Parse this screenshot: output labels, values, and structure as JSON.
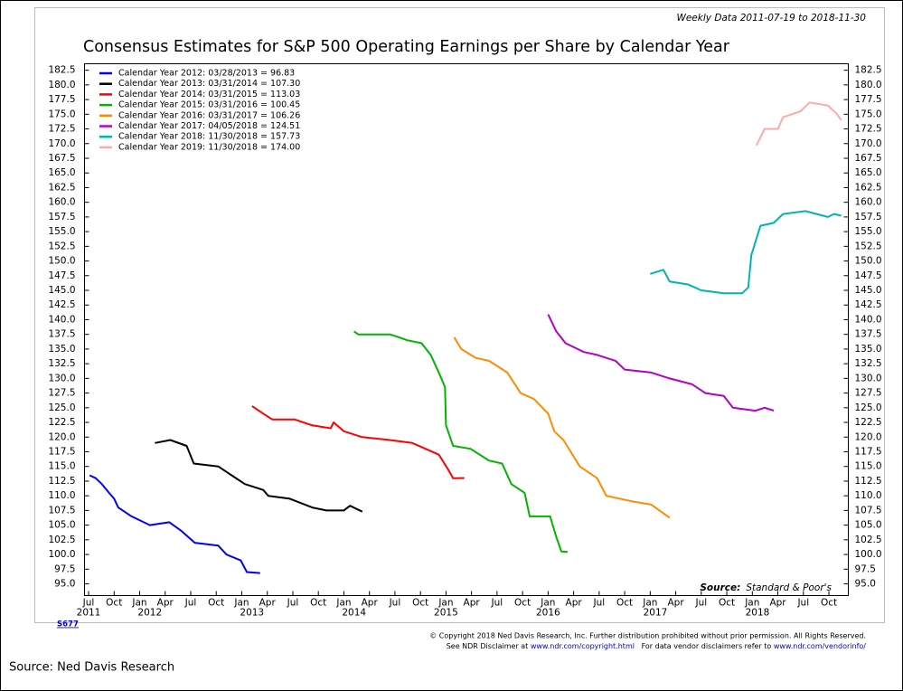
{
  "chart_data": {
    "type": "line",
    "title": "Consensus Estimates for S&P 500 Operating Earnings per Share by Calendar Year",
    "subtitle": "Weekly Data 2011-07-19 to 2018-11-30",
    "source_label": "Source:",
    "source_text": "Standard & Poor's",
    "chart_id": "S677",
    "copyright_line1": "© Copyright 2018 Ned Davis Research, Inc. Further distribution prohibited without prior permission. All Rights Reserved.",
    "copyright_line2_a": "See NDR Disclaimer at ",
    "copyright_link1": "www.ndr.com/copyright.html",
    "copyright_line2_b": "   For data vendor disclaimers refer to ",
    "copyright_link2": "www.ndr.com/vendorinfo/",
    "footer": "Source: Ned Davis Research",
    "xlim": [
      2011.46,
      2018.94
    ],
    "ylim": [
      93.0,
      183.6
    ],
    "grid": false,
    "legend": "upper-left",
    "yticks": [
      {
        "value": 95,
        "label": "95.0"
      },
      {
        "value": 97.5,
        "label": "97.5"
      },
      {
        "value": 100,
        "label": "100.0"
      },
      {
        "value": 102.5,
        "label": "102.5"
      },
      {
        "value": 105,
        "label": "105.0"
      },
      {
        "value": 107.5,
        "label": "107.5"
      },
      {
        "value": 110,
        "label": "110.0"
      },
      {
        "value": 112.5,
        "label": "112.5"
      },
      {
        "value": 115,
        "label": "115.0"
      },
      {
        "value": 117.5,
        "label": "117.5"
      },
      {
        "value": 120,
        "label": "120.0"
      },
      {
        "value": 122.5,
        "label": "122.5"
      },
      {
        "value": 125,
        "label": "125.0"
      },
      {
        "value": 127.5,
        "label": "127.5"
      },
      {
        "value": 130,
        "label": "130.0"
      },
      {
        "value": 132.5,
        "label": "132.5"
      },
      {
        "value": 135,
        "label": "135.0"
      },
      {
        "value": 137.5,
        "label": "137.5"
      },
      {
        "value": 140,
        "label": "140.0"
      },
      {
        "value": 142.5,
        "label": "142.5"
      },
      {
        "value": 145,
        "label": "145.0"
      },
      {
        "value": 147.5,
        "label": "147.5"
      },
      {
        "value": 150,
        "label": "150.0"
      },
      {
        "value": 152.5,
        "label": "152.5"
      },
      {
        "value": 155,
        "label": "155.0"
      },
      {
        "value": 157.5,
        "label": "157.5"
      },
      {
        "value": 160,
        "label": "160.0"
      },
      {
        "value": 162.5,
        "label": "162.5"
      },
      {
        "value": 165,
        "label": "165.0"
      },
      {
        "value": 167.5,
        "label": "167.5"
      },
      {
        "value": 170,
        "label": "170.0"
      },
      {
        "value": 172.5,
        "label": "172.5"
      },
      {
        "value": 175,
        "label": "175.0"
      },
      {
        "value": 177.5,
        "label": "177.5"
      },
      {
        "value": 180,
        "label": "180.0"
      },
      {
        "value": 182.5,
        "label": "182.5"
      }
    ],
    "xticks": [
      {
        "value": 2011.5,
        "label": "Jul"
      },
      {
        "value": 2011.75,
        "label": "Oct"
      },
      {
        "value": 2012.0,
        "label": "Jan"
      },
      {
        "value": 2012.25,
        "label": "Apr"
      },
      {
        "value": 2012.5,
        "label": "Jul"
      },
      {
        "value": 2012.75,
        "label": "Oct"
      },
      {
        "value": 2013.0,
        "label": "Jan"
      },
      {
        "value": 2013.25,
        "label": "Apr"
      },
      {
        "value": 2013.5,
        "label": "Jul"
      },
      {
        "value": 2013.75,
        "label": "Oct"
      },
      {
        "value": 2014.0,
        "label": "Jan"
      },
      {
        "value": 2014.25,
        "label": "Apr"
      },
      {
        "value": 2014.5,
        "label": "Jul"
      },
      {
        "value": 2014.75,
        "label": "Oct"
      },
      {
        "value": 2015.0,
        "label": "Jan"
      },
      {
        "value": 2015.25,
        "label": "Apr"
      },
      {
        "value": 2015.5,
        "label": "Jul"
      },
      {
        "value": 2015.75,
        "label": "Oct"
      },
      {
        "value": 2016.0,
        "label": "Jan"
      },
      {
        "value": 2016.25,
        "label": "Apr"
      },
      {
        "value": 2016.5,
        "label": "Jul"
      },
      {
        "value": 2016.75,
        "label": "Oct"
      },
      {
        "value": 2017.0,
        "label": "Jan"
      },
      {
        "value": 2017.25,
        "label": "Apr"
      },
      {
        "value": 2017.5,
        "label": "Jul"
      },
      {
        "value": 2017.75,
        "label": "Oct"
      },
      {
        "value": 2018.0,
        "label": "Jan"
      },
      {
        "value": 2018.25,
        "label": "Apr"
      },
      {
        "value": 2018.5,
        "label": "Jul"
      },
      {
        "value": 2018.75,
        "label": "Oct"
      }
    ],
    "year_labels": [
      {
        "value": 2011.5,
        "label": "2011"
      },
      {
        "value": 2012.1,
        "label": "2012"
      },
      {
        "value": 2013.1,
        "label": "2013"
      },
      {
        "value": 2014.1,
        "label": "2014"
      },
      {
        "value": 2015.0,
        "label": "2015"
      },
      {
        "value": 2016.0,
        "label": "2016"
      },
      {
        "value": 2017.05,
        "label": "2017"
      },
      {
        "value": 2018.05,
        "label": "2018"
      }
    ],
    "series": [
      {
        "name": "Calendar Year 2012: 03/28/2013 = 96.83",
        "color": "#0000ff",
        "x": [
          2011.51,
          2011.57,
          2011.63,
          2011.7,
          2011.75,
          2011.79,
          2011.92,
          2012.1,
          2012.29,
          2012.41,
          2012.54,
          2012.77,
          2012.85,
          2012.99,
          2013.05,
          2013.18
        ],
        "values": [
          113.5,
          113,
          112,
          110.5,
          109.5,
          108,
          106.5,
          105,
          105.5,
          104,
          102,
          101.5,
          100,
          99,
          97,
          96.83
        ]
      },
      {
        "name": "Calendar Year 2013: 03/31/2014 = 107.30",
        "color": "#000000",
        "x": [
          2012.15,
          2012.3,
          2012.46,
          2012.53,
          2012.77,
          2012.9,
          2013.03,
          2013.21,
          2013.26,
          2013.47,
          2013.69,
          2013.83,
          2014.0,
          2014.06,
          2014.18
        ],
        "values": [
          119.0,
          119.5,
          118.5,
          115.5,
          115,
          113.5,
          112,
          111,
          110,
          109.5,
          108,
          107.5,
          107.5,
          108.3,
          107.3
        ]
      },
      {
        "name": "Calendar Year 2014: 03/31/2015 = 113.03",
        "color": "#ff0000",
        "x": [
          2013.1,
          2013.21,
          2013.3,
          2013.52,
          2013.69,
          2013.87,
          2013.9,
          2014.0,
          2014.18,
          2014.45,
          2014.67,
          2014.8,
          2014.93,
          2015.02,
          2015.07,
          2015.18
        ],
        "values": [
          125.3,
          124,
          123,
          123,
          122,
          121.5,
          122.5,
          121,
          120,
          119.5,
          119,
          118,
          117,
          114.5,
          113,
          113.03
        ]
      },
      {
        "name": "Calendar Year 2015: 03/31/2016 = 100.45",
        "color": "#00b400",
        "x": [
          2014.1,
          2014.14,
          2014.45,
          2014.54,
          2014.62,
          2014.76,
          2014.85,
          2014.93,
          2014.99,
          2015.0,
          2015.07,
          2015.24,
          2015.42,
          2015.55,
          2015.64,
          2015.77,
          2015.82,
          2016.02,
          2016.08,
          2016.13,
          2016.19
        ],
        "values": [
          138.0,
          137.5,
          137.5,
          137,
          136.5,
          136,
          134,
          131,
          128.5,
          122,
          118.5,
          118,
          116,
          115.5,
          112,
          110.5,
          106.5,
          106.5,
          103,
          100.5,
          100.45
        ]
      },
      {
        "name": "Calendar Year 2016: 03/31/2017 = 106.26",
        "color": "#ff8c00",
        "x": [
          2015.08,
          2015.15,
          2015.29,
          2015.42,
          2015.6,
          2015.73,
          2015.86,
          2016.0,
          2016.06,
          2016.15,
          2016.31,
          2016.48,
          2016.57,
          2016.84,
          2017.01,
          2017.19
        ],
        "values": [
          137.0,
          135,
          133.5,
          133,
          131,
          127.5,
          126.5,
          124,
          121,
          119.5,
          115,
          113,
          110,
          109,
          108.5,
          106.26
        ]
      },
      {
        "name": "Calendar Year 2017: 04/05/2018 = 124.51",
        "color": "#b400c8",
        "x": [
          2016.0,
          2016.08,
          2016.17,
          2016.35,
          2016.48,
          2016.66,
          2016.75,
          2017.01,
          2017.19,
          2017.41,
          2017.54,
          2017.72,
          2017.81,
          2018.03,
          2018.12,
          2018.21
        ],
        "values": [
          140.9,
          138,
          136,
          134.5,
          134,
          133,
          131.5,
          131,
          130,
          129,
          127.5,
          127,
          125,
          124.5,
          125,
          124.51
        ]
      },
      {
        "name": "Calendar Year 2018: 11/30/2018 = 157.73",
        "color": "#00b4b4",
        "x": [
          2017.0,
          2017.13,
          2017.19,
          2017.37,
          2017.5,
          2017.72,
          2017.9,
          2017.96,
          2017.99,
          2018.08,
          2018.21,
          2018.3,
          2018.52,
          2018.74,
          2018.8,
          2018.87
        ],
        "values": [
          147.8,
          148.5,
          146.5,
          146,
          145,
          144.5,
          144.5,
          145.5,
          151,
          156,
          156.5,
          158,
          158.5,
          157.5,
          158,
          157.73
        ]
      },
      {
        "name": "Calendar Year 2019: 11/30/2018 = 174.00",
        "color": "#ffaaaa",
        "x": [
          2018.04,
          2018.12,
          2018.25,
          2018.3,
          2018.47,
          2018.56,
          2018.74,
          2018.83,
          2018.87
        ],
        "values": [
          169.7,
          172.5,
          172.5,
          174.5,
          175.5,
          177,
          176.5,
          175,
          174.0
        ]
      }
    ]
  }
}
